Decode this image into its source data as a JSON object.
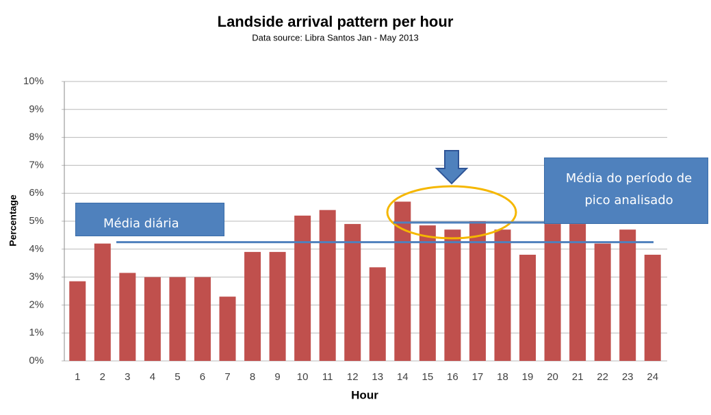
{
  "chart_data": {
    "type": "bar",
    "title": "Landside arrival pattern per hour",
    "subtitle": "Data source: Libra Santos Jan - May 2013",
    "x_label": "Hour",
    "y_label": "Percentage",
    "categories": [
      "1",
      "2",
      "3",
      "4",
      "5",
      "6",
      "7",
      "8",
      "9",
      "10",
      "11",
      "12",
      "13",
      "14",
      "15",
      "16",
      "17",
      "18",
      "19",
      "20",
      "21",
      "22",
      "23",
      "24"
    ],
    "values": [
      2.85,
      4.2,
      3.15,
      3.0,
      3.0,
      3.0,
      2.3,
      3.9,
      3.9,
      5.2,
      5.4,
      4.9,
      3.35,
      5.7,
      4.85,
      4.7,
      5.0,
      4.7,
      3.8,
      4.9,
      4.9,
      4.2,
      4.7,
      3.8
    ],
    "color": "#c0504d",
    "ylim": [
      0,
      10
    ],
    "yticks": [
      {
        "value": 0,
        "label": "0%"
      },
      {
        "value": 1,
        "label": "1%"
      },
      {
        "value": 2,
        "label": "2%"
      },
      {
        "value": 3,
        "label": "3%"
      },
      {
        "value": 4,
        "label": "4%"
      },
      {
        "value": 5,
        "label": "5%"
      },
      {
        "value": 6,
        "label": "6%"
      },
      {
        "value": 7,
        "label": "7%"
      },
      {
        "value": 8,
        "label": "8%"
      },
      {
        "value": 9,
        "label": "9%"
      },
      {
        "value": 10,
        "label": "10%"
      }
    ],
    "grid": true,
    "reference_lines": [
      {
        "name": "Média diária",
        "value": 4.25,
        "color": "#4f81bd"
      },
      {
        "name": "Média do período de pico analisado",
        "value": 4.95,
        "color": "#4f81bd"
      }
    ]
  }
}
